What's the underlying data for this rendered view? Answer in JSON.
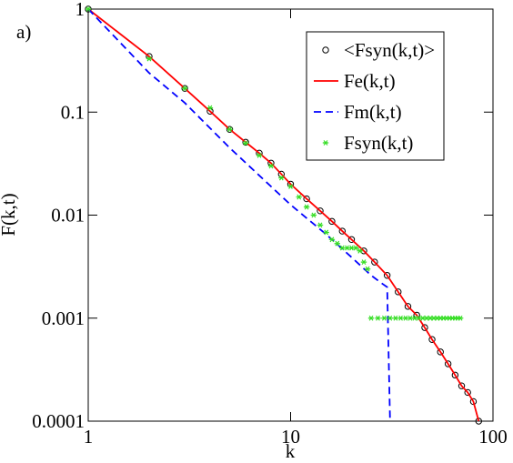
{
  "chart_data": {
    "type": "line",
    "annotation": "a)",
    "x_label": "k",
    "y_label": "F(k,t)",
    "log_x": true,
    "log_y": true,
    "xlim": [
      1,
      100
    ],
    "ylim": [
      0.0001,
      1
    ],
    "xticks": [
      1,
      10,
      100
    ],
    "yticks": [
      0.0001,
      0.001,
      0.01,
      0.1,
      1
    ],
    "legend": "upper right",
    "series": [
      {
        "name": "<Fsyn(k,t)>",
        "color": "#000000",
        "marker": "circle",
        "line": "none",
        "x": [
          1,
          2,
          3,
          4,
          5,
          6,
          7,
          8,
          9,
          10,
          12,
          14,
          16,
          18,
          20,
          23,
          26,
          30,
          34,
          38,
          42,
          46,
          50,
          55,
          60,
          65,
          70,
          75,
          80,
          85
        ],
        "values": [
          1,
          0.347,
          0.17,
          0.102,
          0.068,
          0.051,
          0.04,
          0.032,
          0.025,
          0.02,
          0.0144,
          0.011,
          0.0087,
          0.007,
          0.0058,
          0.0045,
          0.0035,
          0.0026,
          0.0018,
          0.0013,
          0.00107,
          0.00081,
          0.00062,
          0.00047,
          0.00036,
          0.00028,
          0.00022,
          0.00019,
          0.000155,
          0.0001
        ]
      },
      {
        "name": "Fe(k,t)",
        "color": "#ff0000",
        "marker": "none",
        "line": "solid",
        "x": [
          1,
          2,
          3,
          4,
          5,
          6,
          7,
          8,
          9,
          10,
          12,
          14,
          16,
          18,
          20,
          23,
          26,
          30,
          34,
          38,
          42,
          46,
          50,
          55,
          60,
          65,
          70,
          75,
          80,
          85
        ],
        "values": [
          1,
          0.347,
          0.17,
          0.102,
          0.068,
          0.051,
          0.04,
          0.032,
          0.025,
          0.02,
          0.0144,
          0.011,
          0.0087,
          0.007,
          0.0058,
          0.0045,
          0.0035,
          0.0026,
          0.0018,
          0.0013,
          0.00107,
          0.00081,
          0.00062,
          0.00047,
          0.00036,
          0.00028,
          0.00022,
          0.00019,
          0.000155,
          0.0001
        ]
      },
      {
        "name": "Fm(k,t)",
        "color": "#0000ff",
        "marker": "none",
        "line": "dashed",
        "x": [
          1,
          2,
          3,
          5,
          10,
          15,
          20,
          25,
          28,
          30,
          31
        ],
        "values": [
          1,
          0.24,
          0.123,
          0.045,
          0.0126,
          0.0065,
          0.0039,
          0.0026,
          0.0022,
          0.002,
          0.0001
        ]
      },
      {
        "name": "Fsyn(k,t)",
        "color": "#33dd22",
        "marker": "star",
        "line": "none",
        "x": [
          1,
          2,
          3,
          4,
          5,
          6,
          7,
          8,
          9,
          10,
          11,
          12,
          13,
          14,
          15,
          16,
          17,
          18,
          19,
          20,
          21,
          22,
          23,
          24,
          25,
          27,
          29,
          31,
          33,
          35,
          37,
          39,
          41,
          43,
          45,
          47,
          49,
          51,
          53,
          55,
          57,
          59,
          61,
          63,
          65,
          67,
          69
        ],
        "values": [
          1,
          0.33,
          0.17,
          0.11,
          0.068,
          0.05,
          0.038,
          0.03,
          0.023,
          0.019,
          0.015,
          0.012,
          0.01,
          0.008,
          0.0068,
          0.0058,
          0.0053,
          0.0048,
          0.0048,
          0.0048,
          0.0048,
          0.0045,
          0.0035,
          0.003,
          0.001,
          0.001,
          0.001,
          0.001,
          0.001,
          0.001,
          0.001,
          0.001,
          0.001,
          0.001,
          0.001,
          0.001,
          0.001,
          0.001,
          0.001,
          0.001,
          0.001,
          0.001,
          0.001,
          0.001,
          0.001,
          0.001,
          0.001
        ]
      }
    ]
  }
}
